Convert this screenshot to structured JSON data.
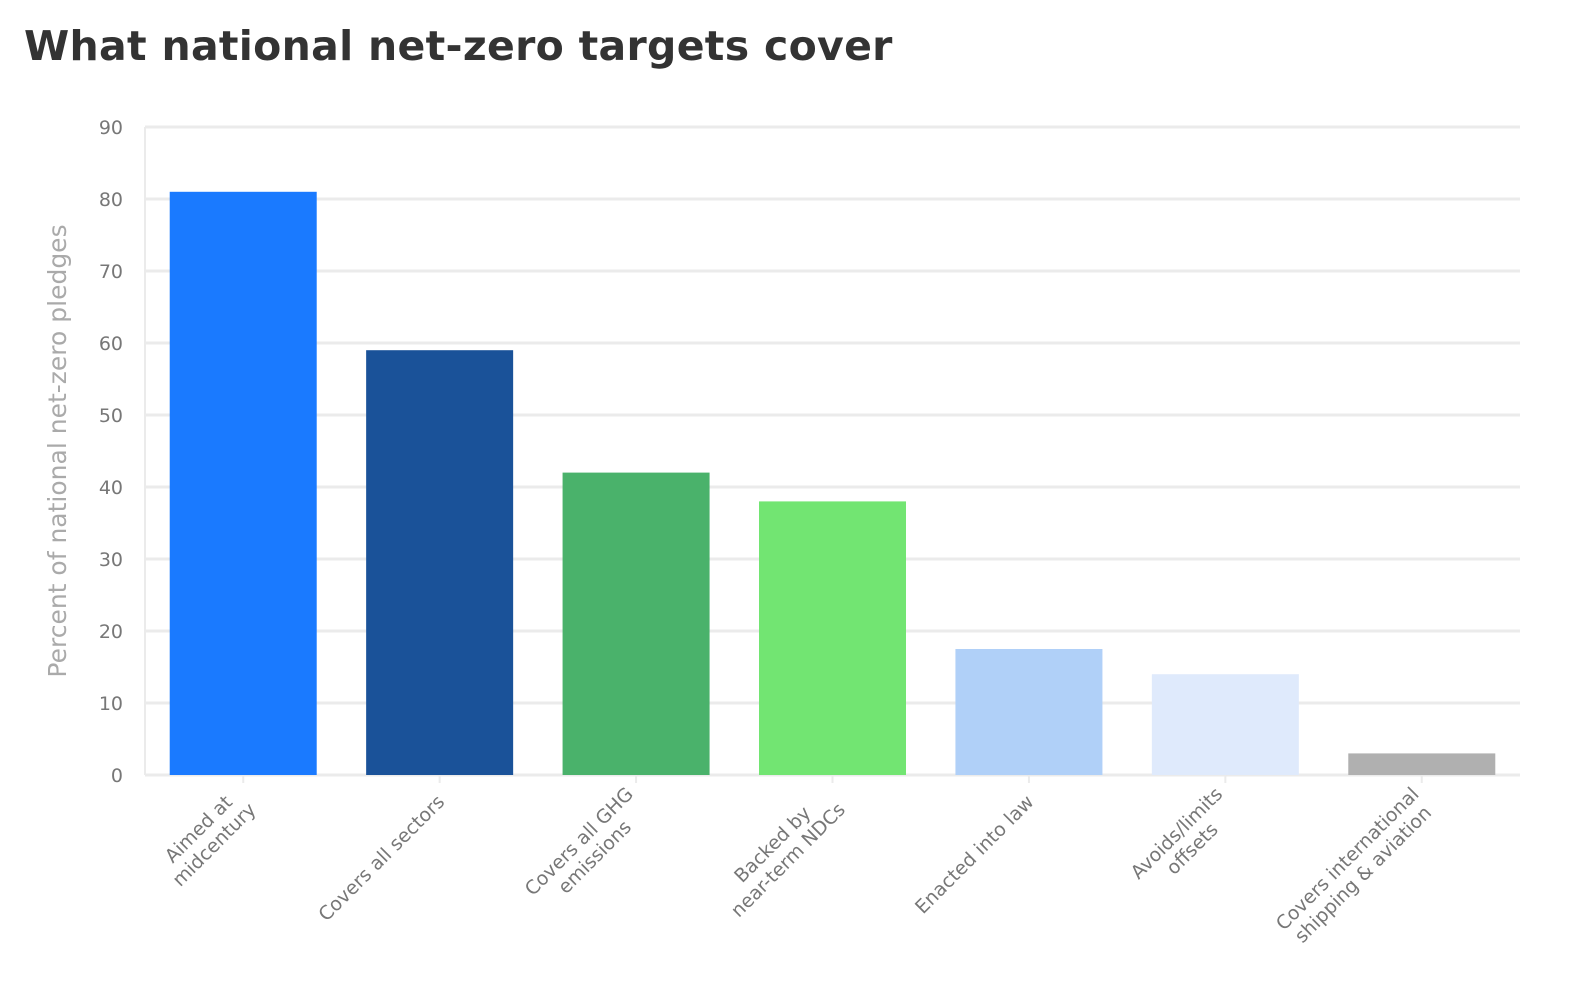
{
  "chart_data": {
    "type": "bar",
    "title": "What national net-zero targets cover",
    "xlabel": "",
    "ylabel": "Percent of national net-zero pledges",
    "ylim": [
      0,
      90
    ],
    "yticks": [
      0,
      10,
      20,
      30,
      40,
      50,
      60,
      70,
      80,
      90
    ],
    "grid": true,
    "categories": [
      [
        "Aimed at",
        "midcentury"
      ],
      [
        "Covers all sectors"
      ],
      [
        "Covers all GHG",
        "emissions"
      ],
      [
        "Backed by",
        "near-term NDCs"
      ],
      [
        "Enacted into law"
      ],
      [
        "Avoids/limits",
        "offsets"
      ],
      [
        "Covers international",
        "shipping & aviation"
      ]
    ],
    "values": [
      81,
      59,
      42,
      38,
      17.5,
      14,
      3
    ],
    "colors": [
      "#1a7aff",
      "#1a5299",
      "#4ab26b",
      "#72e572",
      "#b0d0f8",
      "#dfeafc",
      "#b0b0b0"
    ]
  }
}
